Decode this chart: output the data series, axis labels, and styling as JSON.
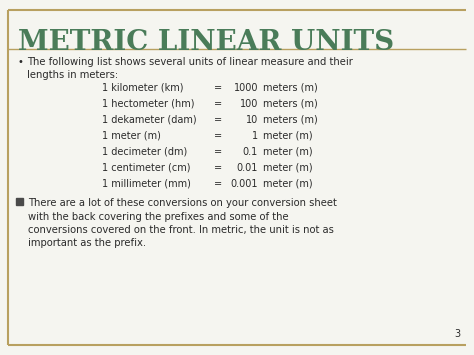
{
  "title": "METRIC LINEAR UNITS",
  "title_color": "#4a7c59",
  "bg_color": "#f5f5f0",
  "border_color": "#b8a060",
  "slide_number": "3",
  "bullet1_line1": "The following list shows several units of linear measure and their",
  "bullet1_line2": "lengths in meters:",
  "conversion_units": [
    "1 kilometer (km)",
    "1 hectometer (hm)",
    "1 dekameter (dam)",
    "1 meter (m)",
    "1 decimeter (dm)",
    "1 centimeter (cm)",
    "1 millimeter (mm)"
  ],
  "conversion_nums": [
    "1000",
    "100",
    "10",
    "1",
    "0.1",
    "0.01",
    "0.001"
  ],
  "conversion_units2": [
    "meters (m)",
    "meters (m)",
    "meters (m)",
    "meter (m)",
    "meter (m)",
    "meter (m)",
    "meter (m)"
  ],
  "bullet2_lines": [
    "There are a lot of these conversions on your conversion sheet",
    "with the back covering the prefixes and some of the",
    "conversions covered on the front. In metric, the unit is not as",
    "important as the prefix."
  ],
  "text_color": "#2b2b2b",
  "square_bullet_color": "#4a4a4a"
}
